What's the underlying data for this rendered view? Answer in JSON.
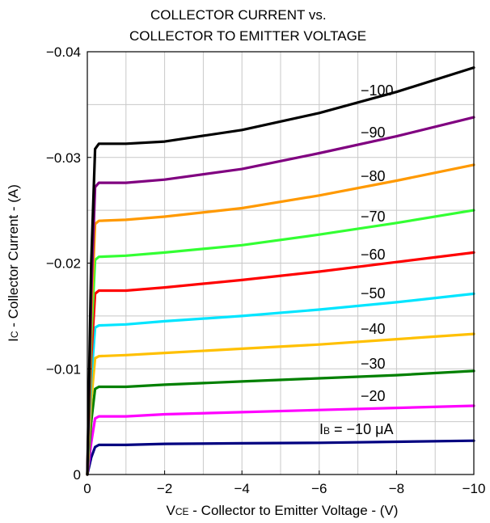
{
  "chart_data": {
    "type": "line",
    "title": [
      "COLLECTOR CURRENT vs.",
      "COLLECTOR TO EMITTER VOLTAGE"
    ],
    "xlabel": {
      "sym": "V",
      "sub": "CE",
      "text": " - Collector to Emitter Voltage - (V)"
    },
    "ylabel": {
      "sym": "I",
      "sub": "C",
      "text": " - Collector Current - (A)"
    },
    "xlim": [
      0,
      -10
    ],
    "ylim": [
      0,
      -0.04
    ],
    "xticks": [
      0,
      -2,
      -4,
      -6,
      -8,
      -10
    ],
    "xtick_labels": [
      "0",
      "−2",
      "−4",
      "−6",
      "−8",
      "−10"
    ],
    "yticks": [
      0,
      -0.01,
      -0.02,
      -0.03,
      -0.04
    ],
    "ytick_labels": [
      "0",
      "−0.01",
      "−0.02",
      "−0.03",
      "−0.04"
    ],
    "grid": true,
    "series": [
      {
        "name": "I",
        "name_sub": "B",
        "name_rest": " = −10 μA",
        "color": "#000080",
        "x": [
          0,
          -0.1,
          -0.2,
          -0.3,
          -1,
          -2,
          -4,
          -6,
          -8,
          -10
        ],
        "y": [
          0,
          -0.0016,
          -0.0026,
          -0.0028,
          -0.0028,
          -0.0029,
          -0.00295,
          -0.003,
          -0.0031,
          -0.0032
        ]
      },
      {
        "name": "−20",
        "color": "#ff00ff",
        "x": [
          0,
          -0.1,
          -0.2,
          -0.3,
          -1,
          -2,
          -4,
          -6,
          -8,
          -10
        ],
        "y": [
          0,
          -0.003,
          -0.0053,
          -0.0055,
          -0.0055,
          -0.0057,
          -0.0059,
          -0.0061,
          -0.0063,
          -0.0065
        ]
      },
      {
        "name": "−30",
        "color": "#008000",
        "x": [
          0,
          -0.1,
          -0.2,
          -0.3,
          -1,
          -2,
          -4,
          -6,
          -8,
          -10
        ],
        "y": [
          0,
          -0.005,
          -0.0081,
          -0.0083,
          -0.0083,
          -0.0085,
          -0.0088,
          -0.0091,
          -0.0094,
          -0.0098
        ]
      },
      {
        "name": "−40",
        "color": "#ffc000",
        "x": [
          0,
          -0.1,
          -0.2,
          -0.3,
          -1,
          -2,
          -4,
          -6,
          -8,
          -10
        ],
        "y": [
          0,
          -0.007,
          -0.011,
          -0.0112,
          -0.0113,
          -0.0115,
          -0.0119,
          -0.0123,
          -0.0128,
          -0.0133
        ]
      },
      {
        "name": "−50",
        "color": "#00e5ff",
        "x": [
          0,
          -0.1,
          -0.2,
          -0.3,
          -1,
          -2,
          -4,
          -6,
          -8,
          -10
        ],
        "y": [
          0,
          -0.009,
          -0.0139,
          -0.0141,
          -0.0142,
          -0.0145,
          -0.015,
          -0.0156,
          -0.0163,
          -0.0171
        ]
      },
      {
        "name": "−60",
        "color": "#ff0000",
        "x": [
          0,
          -0.1,
          -0.2,
          -0.3,
          -1,
          -2,
          -4,
          -6,
          -8,
          -10
        ],
        "y": [
          0,
          -0.011,
          -0.0171,
          -0.0174,
          -0.0174,
          -0.0177,
          -0.0184,
          -0.0192,
          -0.0201,
          -0.021
        ]
      },
      {
        "name": "−70",
        "color": "#33ff33",
        "x": [
          0,
          -0.1,
          -0.2,
          -0.3,
          -1,
          -2,
          -4,
          -6,
          -8,
          -10
        ],
        "y": [
          0,
          -0.013,
          -0.0203,
          -0.0206,
          -0.0207,
          -0.021,
          -0.0217,
          -0.0227,
          -0.0238,
          -0.025
        ]
      },
      {
        "name": "−80",
        "color": "#ff9900",
        "x": [
          0,
          -0.1,
          -0.2,
          -0.3,
          -1,
          -2,
          -4,
          -6,
          -8,
          -10
        ],
        "y": [
          0,
          -0.015,
          -0.0237,
          -0.024,
          -0.0241,
          -0.0244,
          -0.0252,
          -0.0264,
          -0.0278,
          -0.0293
        ]
      },
      {
        "name": "−90",
        "color": "#800080",
        "x": [
          0,
          -0.1,
          -0.2,
          -0.3,
          -1,
          -2,
          -4,
          -6,
          -8,
          -10
        ],
        "y": [
          0,
          -0.017,
          -0.0272,
          -0.0276,
          -0.0276,
          -0.0279,
          -0.0289,
          -0.0304,
          -0.032,
          -0.0338
        ]
      },
      {
        "name": "−100",
        "color": "#000000",
        "x": [
          0,
          -0.1,
          -0.2,
          -0.3,
          -1,
          -2,
          -4,
          -6,
          -8,
          -10
        ],
        "y": [
          0,
          -0.02,
          -0.0308,
          -0.0313,
          -0.0313,
          -0.0315,
          -0.0326,
          -0.0342,
          -0.0362,
          -0.0385
        ]
      }
    ]
  }
}
